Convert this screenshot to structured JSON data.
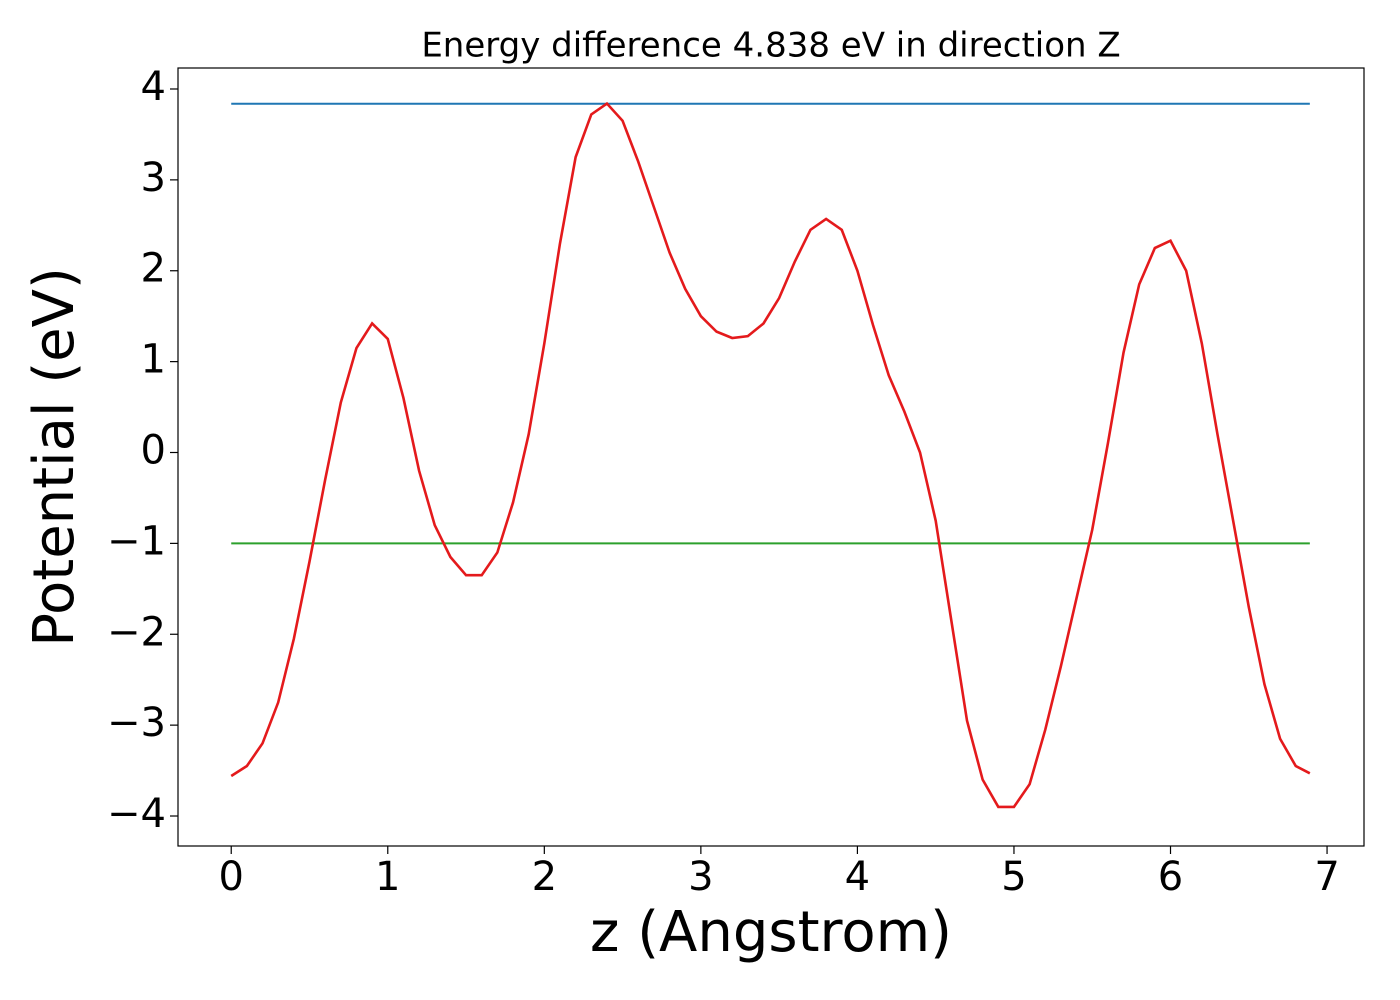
{
  "chart_data": {
    "type": "line",
    "title": "Energy difference 4.838 eV in direction Z",
    "xlabel": "z (Angstrom)",
    "ylabel": "Potential (eV)",
    "xlim": [
      -0.34,
      7.236
    ],
    "ylim": [
      -4.33,
      4.231
    ],
    "xticks": [
      0,
      1,
      2,
      3,
      4,
      5,
      6,
      7
    ],
    "yticks": [
      {
        "value": -4,
        "label": "−4"
      },
      {
        "value": -3,
        "label": "−3"
      },
      {
        "value": -2,
        "label": "−2"
      },
      {
        "value": -1,
        "label": "−1"
      },
      0,
      1,
      2,
      3,
      4
    ],
    "series": [
      {
        "color": "#1f77b4",
        "x": [
          0,
          6.89
        ],
        "values": [
          3.838,
          3.838
        ]
      },
      {
        "color": "#2ca02c",
        "x": [
          0,
          6.89
        ],
        "values": [
          -1.0,
          -1.0
        ]
      },
      {
        "color": "#e41a1c",
        "x": [
          0,
          0.1,
          0.2,
          0.3,
          0.4,
          0.5,
          0.6,
          0.7,
          0.8,
          0.9,
          1.0,
          1.1,
          1.2,
          1.3,
          1.4,
          1.5,
          1.6,
          1.7,
          1.8,
          1.9,
          2.0,
          2.1,
          2.2,
          2.3,
          2.4,
          2.5,
          2.6,
          2.7,
          2.8,
          2.9,
          3.0,
          3.1,
          3.2,
          3.3,
          3.4,
          3.5,
          3.6,
          3.7,
          3.8,
          3.9,
          4.0,
          4.1,
          4.2,
          4.3,
          4.4,
          4.5,
          4.6,
          4.7,
          4.8,
          4.9,
          5.0,
          5.1,
          5.2,
          5.3,
          5.4,
          5.5,
          5.6,
          5.7,
          5.8,
          5.9,
          6.0,
          6.1,
          6.2,
          6.3,
          6.4,
          6.5,
          6.6,
          6.7,
          6.8,
          6.89
        ],
        "values": [
          -3.56,
          -3.45,
          -3.2,
          -2.75,
          -2.05,
          -1.2,
          -0.3,
          0.55,
          1.15,
          1.42,
          1.25,
          0.6,
          -0.2,
          -0.8,
          -1.15,
          -1.35,
          -1.35,
          -1.1,
          -0.55,
          0.2,
          1.2,
          2.3,
          3.25,
          3.72,
          3.84,
          3.65,
          3.2,
          2.7,
          2.2,
          1.8,
          1.5,
          1.33,
          1.26,
          1.28,
          1.42,
          1.7,
          2.1,
          2.45,
          2.57,
          2.45,
          2.0,
          1.4,
          0.85,
          0.45,
          0.0,
          -0.75,
          -1.85,
          -2.95,
          -3.6,
          -3.9,
          -3.9,
          -3.65,
          -3.05,
          -2.35,
          -1.6,
          -0.85,
          0.1,
          1.1,
          1.85,
          2.25,
          2.33,
          2.0,
          1.2,
          0.2,
          -0.75,
          -1.7,
          -2.55,
          -3.15,
          -3.45,
          -3.53
        ]
      }
    ]
  }
}
